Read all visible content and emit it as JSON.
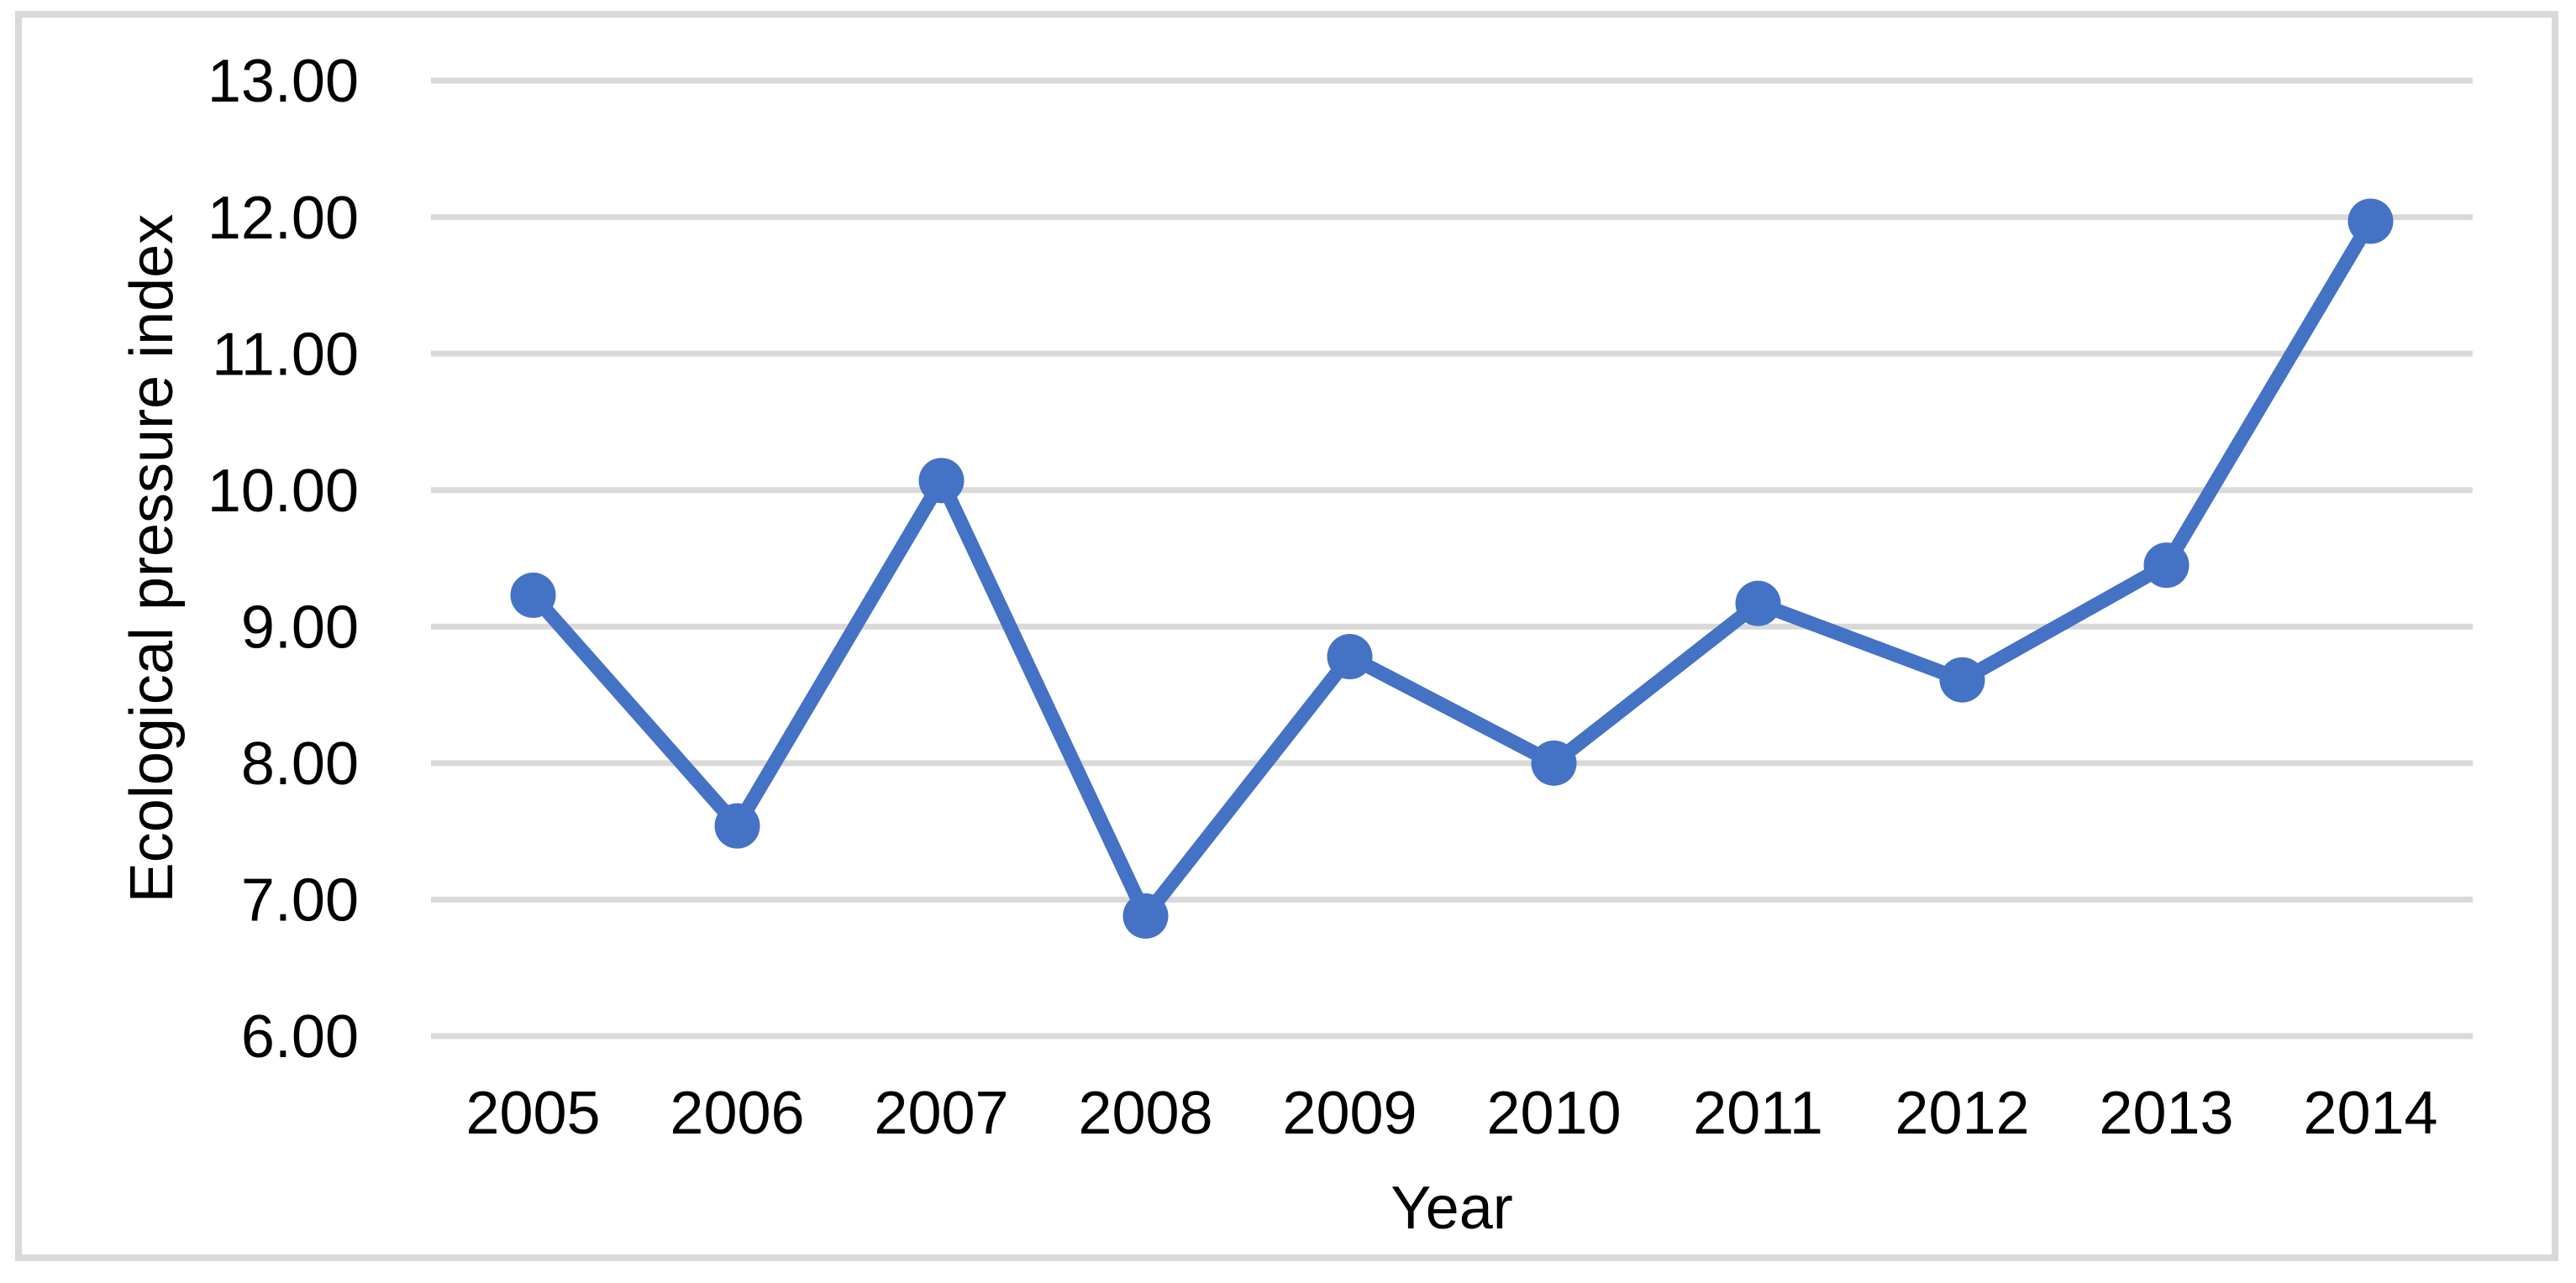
{
  "figure": {
    "background": "#FFFFFF",
    "border_color": "#D9D9D9"
  },
  "chart_data": {
    "type": "line",
    "title": "",
    "xlabel": "Year",
    "ylabel": "Ecological pressure index",
    "categories": [
      "2005",
      "2006",
      "2007",
      "2008",
      "2009",
      "2010",
      "2011",
      "2012",
      "2013",
      "2014"
    ],
    "series": [
      {
        "name": "Ecological pressure index",
        "values": [
          9.23,
          7.54,
          10.07,
          6.88,
          8.78,
          8.0,
          9.17,
          8.61,
          9.45,
          11.97
        ]
      }
    ],
    "ylim": [
      6,
      13
    ],
    "y_tick_step": 1,
    "y_tick_labels": [
      "6.00",
      "7.00",
      "8.00",
      "9.00",
      "10.00",
      "11.00",
      "12.00",
      "13.00"
    ],
    "grid": "horizontal-only",
    "legend": "none",
    "marker_shape": "circle",
    "colors": {
      "series": "#4472C4",
      "gridline": "#D9D9D9",
      "text": "#000000",
      "border": "#D9D9D9",
      "background": "#FFFFFF"
    }
  }
}
